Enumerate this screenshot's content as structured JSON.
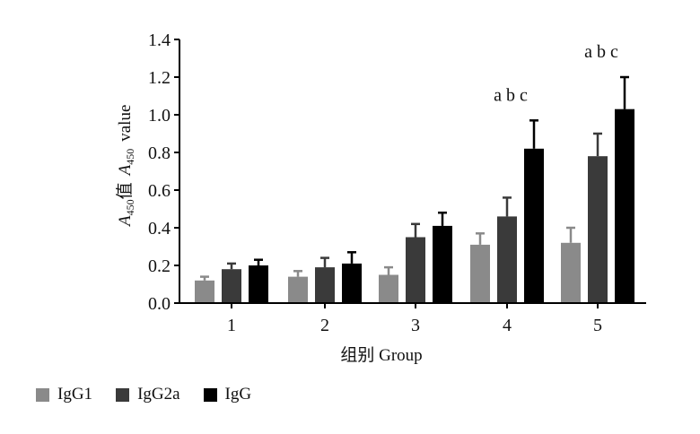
{
  "chart_data": {
    "type": "bar",
    "title": "",
    "categories": [
      "1",
      "2",
      "3",
      "4",
      "5"
    ],
    "xlabel": "组别  Group",
    "ylabel": {
      "cn_prefix": "A",
      "cn_sub": "450",
      "cn_word": "值",
      "en_prefix": "A",
      "en_sub": "450",
      "en_word": "value"
    },
    "ylim": [
      0,
      1.4
    ],
    "yticks": [
      "0.0",
      "0.2",
      "0.4",
      "0.6",
      "0.8",
      "1.0",
      "1.2",
      "1.4"
    ],
    "series": [
      {
        "name": "IgG1",
        "color": "#8a8a8a",
        "values": [
          0.12,
          0.14,
          0.15,
          0.31,
          0.32
        ],
        "errors": [
          0.02,
          0.03,
          0.04,
          0.06,
          0.08
        ]
      },
      {
        "name": "IgG2a",
        "color": "#3a3a3a",
        "values": [
          0.18,
          0.19,
          0.35,
          0.46,
          0.78
        ],
        "errors": [
          0.03,
          0.05,
          0.07,
          0.1,
          0.12
        ]
      },
      {
        "name": "IgG",
        "color": "#000000",
        "values": [
          0.2,
          0.21,
          0.41,
          0.82,
          1.03
        ],
        "errors": [
          0.03,
          0.06,
          0.07,
          0.15,
          0.17
        ]
      }
    ],
    "annotations": [
      {
        "category": "4",
        "text": "a b c"
      },
      {
        "category": "5",
        "text": "a b c"
      }
    ],
    "legend": "bottom-left",
    "grid": false
  }
}
